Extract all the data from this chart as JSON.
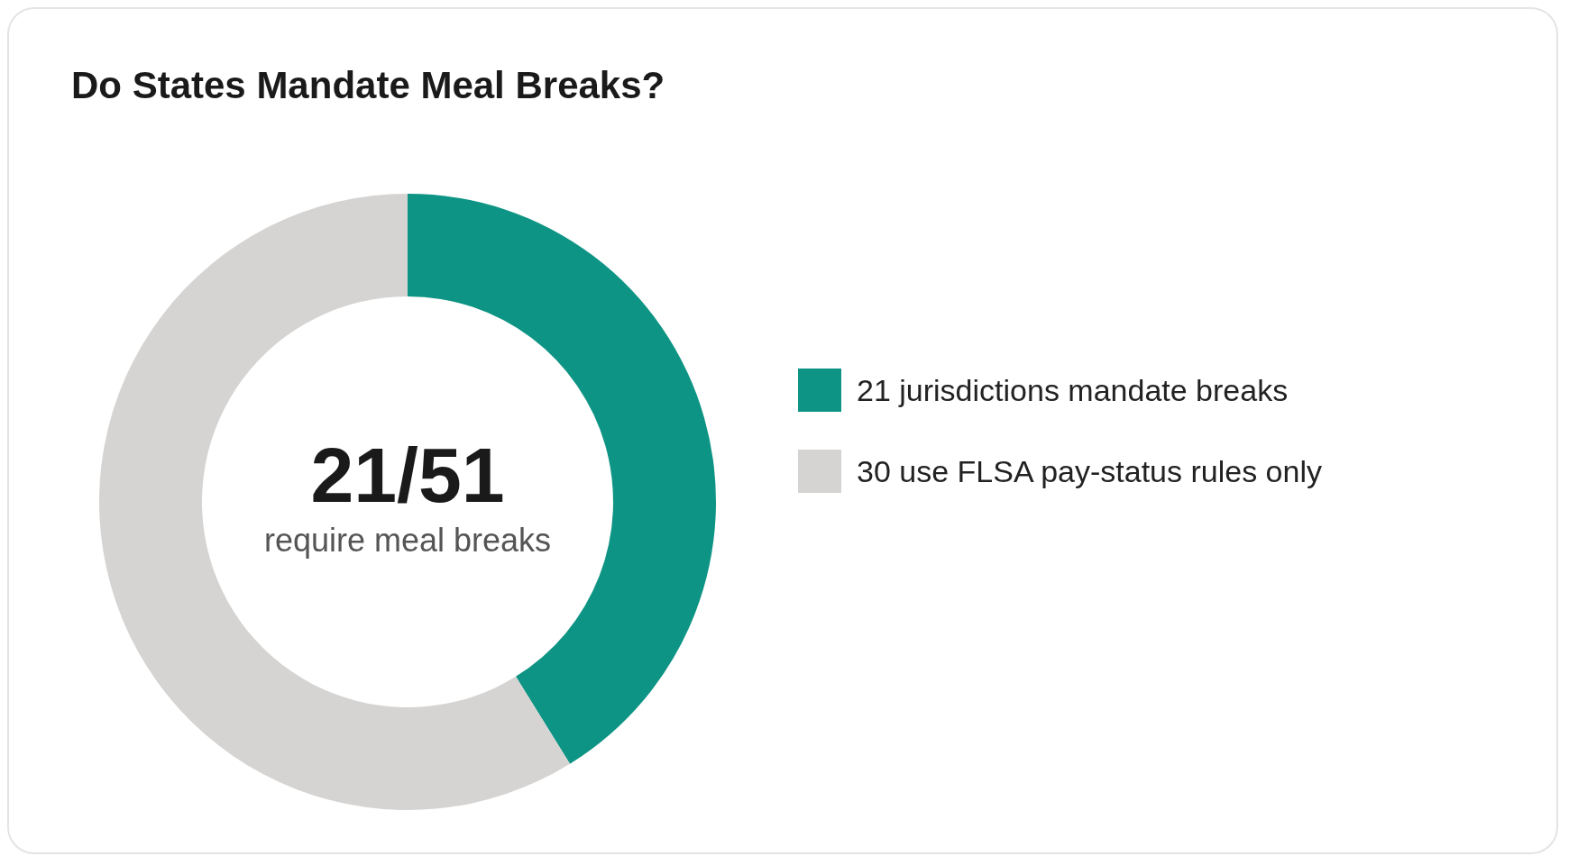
{
  "chart_data": {
    "type": "donut",
    "title": "Do States Mandate Meal Breaks?",
    "categories": [
      "21 jurisdictions mandate breaks",
      "30 use FLSA pay-status rules only"
    ],
    "values": [
      21,
      30
    ],
    "colors": [
      "#0e9484",
      "#d6d4d3"
    ],
    "legend": "right",
    "annotations": [
      "21/51",
      "require meal breaks"
    ]
  }
}
